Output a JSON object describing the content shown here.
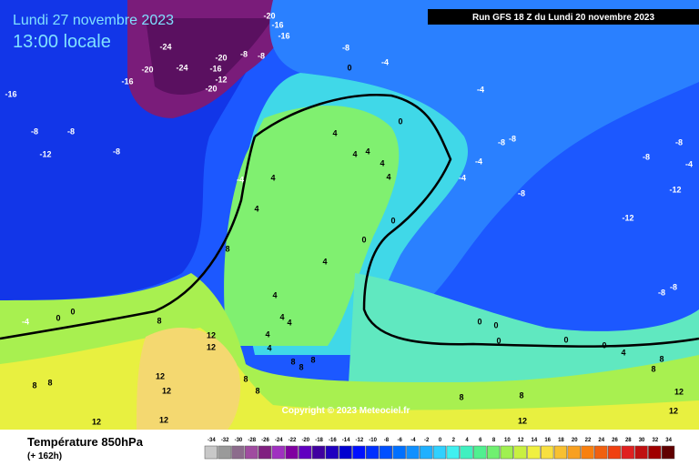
{
  "header": {
    "date": "Lundi 27 novembre 2023",
    "time": "13:00 locale",
    "run": "Run GFS 18 Z du Lundi 20 novembre 2023"
  },
  "copyright": "Copyright © 2023 Meteociel.fr",
  "footer": {
    "title": "Température 850hPa",
    "lead": "(+ 162h)"
  },
  "scale": {
    "values": [
      -34,
      -32,
      -30,
      -28,
      -26,
      -24,
      -22,
      -20,
      -18,
      -16,
      -14,
      -12,
      -10,
      -8,
      -6,
      -4,
      -2,
      0,
      2,
      4,
      6,
      8,
      10,
      12,
      14,
      16,
      18,
      20,
      22,
      24,
      26,
      28,
      30,
      32,
      34
    ],
    "colors": [
      "#c8c8c8",
      "#9a9a9a",
      "#8c6c8c",
      "#a04ca0",
      "#802080",
      "#a030c0",
      "#8000a0",
      "#6000c0",
      "#4000a0",
      "#2000c0",
      "#0000d0",
      "#0010ff",
      "#0030ff",
      "#0050ff",
      "#0070ff",
      "#1090ff",
      "#20b0ff",
      "#30d0ff",
      "#40f0f0",
      "#40f0c0",
      "#50f090",
      "#70f070",
      "#a0f050",
      "#c8f040",
      "#f0f040",
      "#f8e040",
      "#f8c030",
      "#f8a020",
      "#f88010",
      "#f06010",
      "#f04010",
      "#e02020",
      "#c01010",
      "#a00000",
      "#600000"
    ]
  },
  "contour_labels": [
    -24,
    -20,
    -24,
    -16,
    -20,
    -16,
    -12,
    -20,
    -8,
    -8,
    -16,
    -16,
    -20,
    -16,
    -8,
    -8,
    -12,
    -8,
    -8,
    0,
    -4,
    -4,
    0,
    4,
    4,
    4,
    4,
    4,
    -4,
    4,
    4,
    0,
    0,
    8,
    4,
    4,
    4,
    4,
    4,
    4,
    8,
    8,
    8,
    -4,
    0,
    0,
    8,
    12,
    12,
    12,
    12,
    8,
    8,
    8,
    8,
    12,
    12,
    -8,
    -8,
    -4,
    -4,
    -8,
    -12,
    -8,
    -8,
    -12,
    -4,
    -8,
    -8,
    0,
    0,
    0,
    0,
    0,
    4,
    8,
    8,
    12,
    8,
    12,
    12,
    8
  ]
}
